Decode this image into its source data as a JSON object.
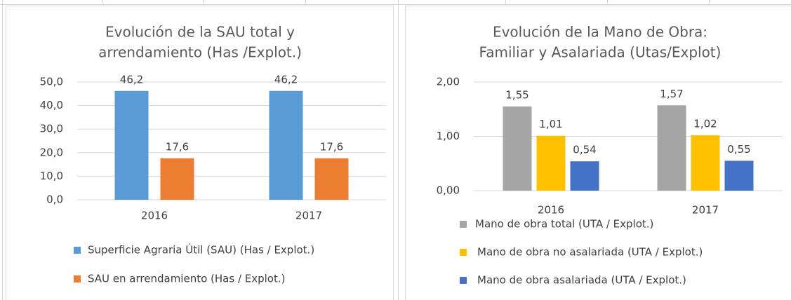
{
  "chart_data": [
    {
      "type": "bar",
      "title": [
        "Evolución de la SAU total y",
        "arrendamiento (Has /Explot.)"
      ],
      "categories": [
        "2016",
        "2017"
      ],
      "series": [
        {
          "name": "Superficie Agraria Útil (SAU) (Has / Explot.)",
          "color": "#5b9bd5",
          "values": [
            46.2,
            46.2
          ],
          "value_labels": [
            "46,2",
            "46,2"
          ]
        },
        {
          "name": "SAU en arrendamiento (Has / Explot.)",
          "color": "#ed7d31",
          "values": [
            17.6,
            17.6
          ],
          "value_labels": [
            "17,6",
            "17,6"
          ]
        }
      ],
      "ylim": [
        0,
        50
      ],
      "yticks": [
        {
          "value": 0,
          "label": "0,0"
        },
        {
          "value": 10,
          "label": "10,0"
        },
        {
          "value": 20,
          "label": "20,0"
        },
        {
          "value": 30,
          "label": "30,0"
        },
        {
          "value": 40,
          "label": "40,0"
        },
        {
          "value": 50,
          "label": "50,0"
        }
      ],
      "grid": true,
      "legend": "bottom"
    },
    {
      "type": "bar",
      "title": [
        "Evolución de la Mano de Obra:",
        "Familiar y Asalariada (Utas/Explot)"
      ],
      "categories": [
        "2016",
        "2017"
      ],
      "series": [
        {
          "name": "Mano de obra total (UTA / Explot.)",
          "color": "#a5a5a5",
          "values": [
            1.55,
            1.57
          ],
          "value_labels": [
            "1,55",
            "1,57"
          ]
        },
        {
          "name": "Mano de obra no asalariada (UTA / Explot.)",
          "color": "#ffc000",
          "values": [
            1.01,
            1.02
          ],
          "value_labels": [
            "1,01",
            "1,02"
          ]
        },
        {
          "name": "Mano de obra asalariada (UTA / Explot.)",
          "color": "#4472c4",
          "values": [
            0.54,
            0.55
          ],
          "value_labels": [
            "0,54",
            "0,55"
          ]
        }
      ],
      "ylim": [
        0,
        2
      ],
      "yticks": [
        {
          "value": 0,
          "label": "0,00"
        },
        {
          "value": 1,
          "label": "1,00"
        },
        {
          "value": 2,
          "label": "2,00"
        }
      ],
      "grid": true,
      "legend": "bottom"
    }
  ]
}
